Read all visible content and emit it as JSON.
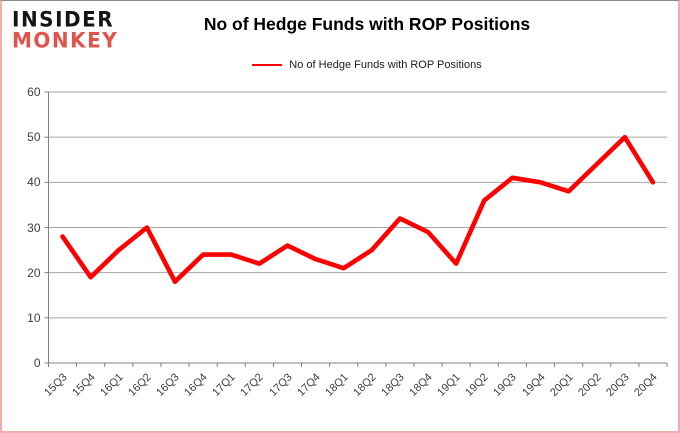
{
  "logo": {
    "line1": "INSIDER",
    "line2": "MONKEY"
  },
  "header": {
    "title": "No of Hedge Funds with ROP Positions"
  },
  "legend": {
    "label": "No of Hedge Funds with ROP Positions"
  },
  "colors": {
    "series": "#ff0000",
    "gridline": "#a6a6a6",
    "axis": "#808080",
    "logo_black": "#151515",
    "logo_red": "#e0544b"
  },
  "chart_data": {
    "type": "line",
    "title": "No of Hedge Funds with ROP Positions",
    "categories": [
      "15Q3",
      "15Q4",
      "16Q1",
      "16Q2",
      "16Q3",
      "16Q4",
      "17Q1",
      "17Q2",
      "17Q3",
      "17Q4",
      "18Q1",
      "18Q2",
      "18Q3",
      "18Q4",
      "19Q1",
      "19Q2",
      "19Q3",
      "19Q4",
      "20Q1",
      "20Q2",
      "20Q3",
      "20Q4"
    ],
    "series": [
      {
        "name": "No of Hedge Funds with ROP Positions",
        "color": "#ff0000",
        "values": [
          28,
          19,
          25,
          30,
          18,
          24,
          24,
          22,
          26,
          23,
          21,
          25,
          32,
          29,
          22,
          36,
          41,
          40,
          38,
          44,
          50,
          40
        ]
      }
    ],
    "xlabel": "",
    "ylabel": "",
    "ylim": [
      0,
      60
    ],
    "yticks": [
      0,
      10,
      20,
      30,
      40,
      50,
      60
    ],
    "grid": "horizontal",
    "legend_position": "top"
  }
}
